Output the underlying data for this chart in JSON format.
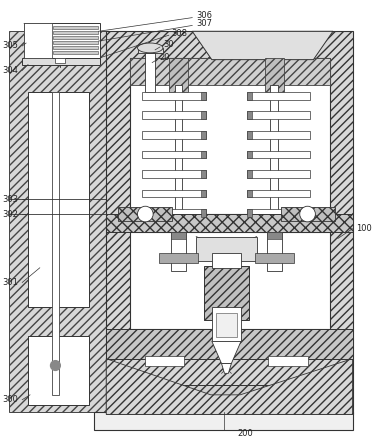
{
  "fig_width": 3.74,
  "fig_height": 4.43,
  "dpi": 100,
  "lc": "#333333",
  "hc": "#555555",
  "fc_hatch": "#e5e5e5",
  "fc_white": "#ffffff",
  "fontsize": 6.0
}
